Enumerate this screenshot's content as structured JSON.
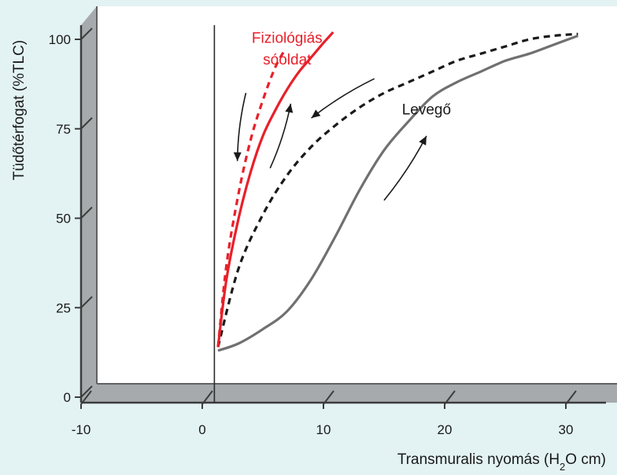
{
  "chart_data": {
    "type": "line",
    "title": "",
    "xlabel": {
      "prefix": "Transmuralis nyomás (H",
      "sub": "2",
      "suffix": "O cm)"
    },
    "ylabel": "Tüdőtérfogat (%TLC)",
    "xlim": [
      -10,
      33
    ],
    "ylim": [
      0,
      105
    ],
    "x_ticks": [
      -10,
      0,
      10,
      20,
      30
    ],
    "y_ticks": [
      0,
      25,
      50,
      75,
      100
    ],
    "grid": false,
    "reference_line_x": 1,
    "annotations": [
      {
        "text": "Fiziológiás",
        "color": "#e8202a",
        "x": 7.0,
        "y": 99
      },
      {
        "text": "sóoldat",
        "color": "#e8202a",
        "x": 7.0,
        "y": 93
      },
      {
        "text": "Levegő",
        "color": "#1a1a1a",
        "x": 18.5,
        "y": 79
      }
    ],
    "series": [
      {
        "style": "solid",
        "color": "#e8202a",
        "x": [
          1.3,
          2,
          3,
          4,
          5,
          6,
          7,
          8,
          9,
          10,
          10.8
        ],
        "y": [
          14,
          33,
          50,
          63,
          73,
          80,
          86,
          91,
          95,
          99,
          102
        ]
      },
      {
        "style": "dashed",
        "color": "#e8202a",
        "x": [
          1.3,
          2,
          3,
          4,
          5,
          6,
          6.8
        ],
        "y": [
          14,
          37,
          57,
          72,
          83,
          92,
          97
        ]
      },
      {
        "style": "dashed",
        "color": "#1a1a1a",
        "x": [
          1.3,
          3,
          5,
          7,
          9,
          11,
          13,
          15,
          17,
          19,
          21,
          23,
          25,
          27,
          29,
          31
        ],
        "y": [
          14,
          36,
          51,
          62,
          70,
          76,
          81,
          85,
          88,
          91,
          94,
          96,
          98,
          100,
          101,
          101.5
        ]
      },
      {
        "style": "solid",
        "color": "#707070",
        "x": [
          1.3,
          3,
          5,
          7,
          9,
          11,
          13,
          15,
          17,
          19,
          21,
          23,
          25,
          27,
          29,
          31
        ],
        "y": [
          13,
          15,
          19,
          24,
          33,
          45,
          58,
          69,
          77,
          84,
          88,
          91,
          94,
          96,
          98.5,
          101
        ]
      }
    ],
    "arrows": [
      {
        "direction": "down",
        "color": "#1a1a1a",
        "from": [
          3.6,
          85
        ],
        "to": [
          2.9,
          66
        ]
      },
      {
        "direction": "up",
        "color": "#1a1a1a",
        "from": [
          5.6,
          64
        ],
        "to": [
          7.3,
          82
        ]
      },
      {
        "direction": "down-left",
        "color": "#1a1a1a",
        "from": [
          14.2,
          89
        ],
        "to": [
          9.0,
          78
        ]
      },
      {
        "direction": "up-right",
        "color": "#1a1a1a",
        "from": [
          15.0,
          55
        ],
        "to": [
          18.5,
          73
        ]
      }
    ]
  }
}
